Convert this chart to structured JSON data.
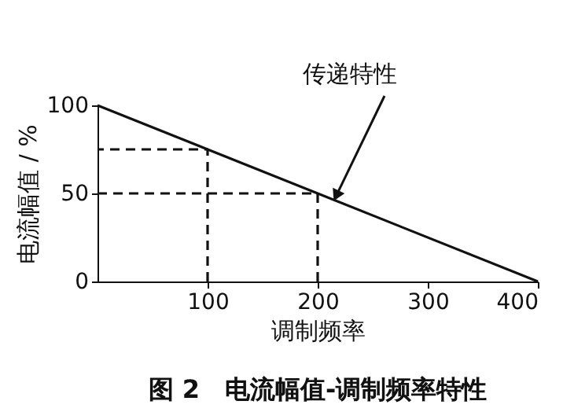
{
  "chart_data": {
    "type": "line",
    "title": "图 2　电流幅值-调制频率特性",
    "xlabel": "调制频率",
    "ylabel": "电流幅值 / %",
    "xlim": [
      0,
      400
    ],
    "xticks": [
      100,
      200,
      300,
      400
    ],
    "ylim": [
      0,
      100
    ],
    "yticks": [
      0,
      50,
      100
    ],
    "grid": false,
    "marker": "none",
    "annotations": [
      {
        "text": "传递特性",
        "x": 215,
        "y": 46.25
      }
    ],
    "series": [
      {
        "color": "#111111",
        "line_style": "solid",
        "x": [
          0,
          400
        ],
        "values": [
          100,
          0
        ]
      },
      {
        "color": "#111111",
        "line_style": "dashed",
        "x": [
          100,
          100,
          0
        ],
        "values": [
          0,
          75,
          75
        ]
      },
      {
        "color": "#111111",
        "line_style": "dashed",
        "x": [
          200,
          200,
          0
        ],
        "values": [
          0,
          50,
          50
        ]
      }
    ]
  }
}
